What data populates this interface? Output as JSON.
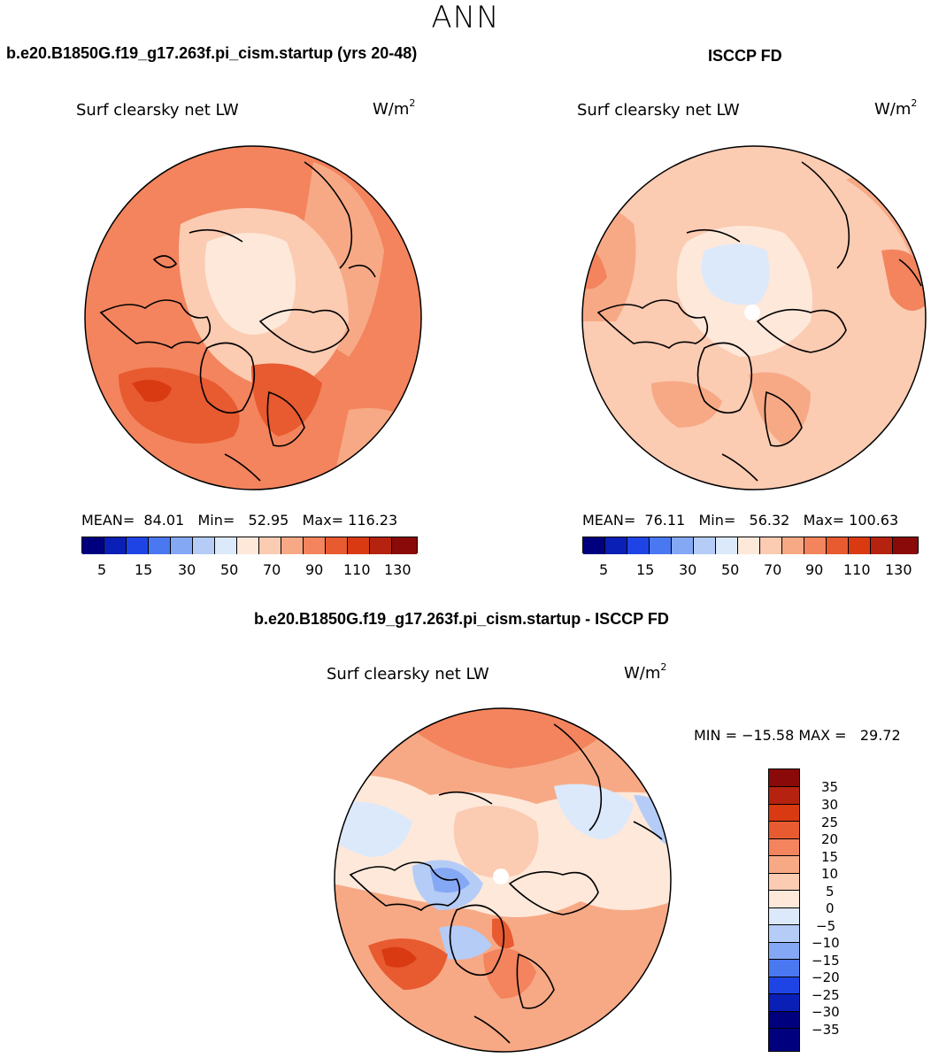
{
  "header": {
    "title": "ANN"
  },
  "panels": [
    {
      "case_title": "b.e20.B1850G.f19_g17.263f.pi_cism.startup (yrs 20-48)",
      "variable": "Surf clearsky net LW",
      "units": "W/m",
      "units_exp": "2",
      "stats": "MEAN=  84.01   Min=   52.95   Max= 116.23",
      "colorbar_ticks": [
        "5",
        "15",
        "30",
        "50",
        "70",
        "90",
        "110",
        "130"
      ]
    },
    {
      "case_title": "ISCCP FD",
      "variable": "Surf clearsky net LW",
      "units": "W/m",
      "units_exp": "2",
      "stats": "MEAN=  76.11   Min=   56.32   Max= 100.63",
      "colorbar_ticks": [
        "5",
        "15",
        "30",
        "50",
        "70",
        "90",
        "110",
        "130"
      ]
    }
  ],
  "diff": {
    "case_title": "b.e20.B1850G.f19_g17.263f.pi_cism.startup - ISCCP FD",
    "variable": "Surf clearsky net LW",
    "units": "W/m",
    "units_exp": "2",
    "minmax": "MIN = −15.58 MAX =   29.72",
    "colorbar_ticks": [
      "35",
      "30",
      "25",
      "20",
      "15",
      "10",
      "5",
      "0",
      "−5",
      "−10",
      "−15",
      "−20",
      "−25",
      "−30",
      "−35"
    ]
  },
  "colors": {
    "abs_palette": [
      "#00007f",
      "#0a1fb5",
      "#1f44e6",
      "#4a78f0",
      "#85a8f5",
      "#b5ccf7",
      "#dbe9fb",
      "#fde8da",
      "#fbcbb2",
      "#f7a985",
      "#f3845d",
      "#e85a30",
      "#d93a12",
      "#b52210",
      "#8a0a0a"
    ],
    "diff_palette": [
      "#8a0a0a",
      "#b52210",
      "#d93a12",
      "#e85a30",
      "#f3845d",
      "#f7a985",
      "#fbcbb2",
      "#fde8da",
      "#dbe9fb",
      "#b5ccf7",
      "#85a8f5",
      "#4a78f0",
      "#1f44e6",
      "#0a1fb5",
      "#00007f",
      "#00007f"
    ]
  }
}
